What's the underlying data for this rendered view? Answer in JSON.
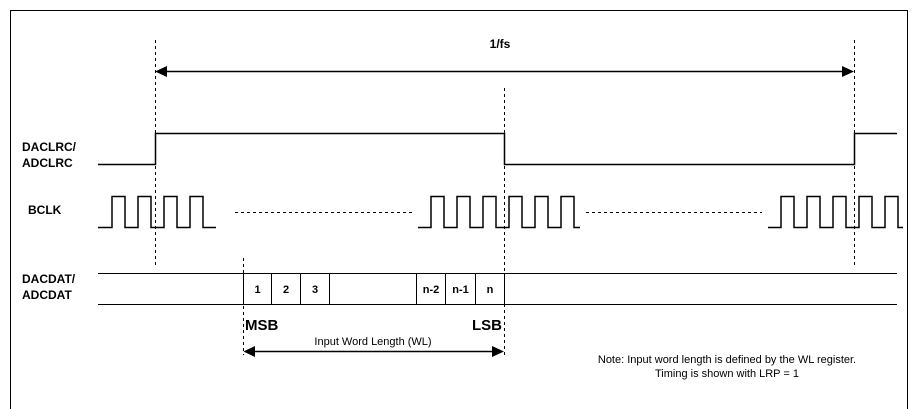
{
  "diagram": {
    "period_label": "1/fs",
    "signals": {
      "lrclk": [
        "DACLRC/",
        "ADCLRC"
      ],
      "bclk": "BCLK",
      "data": [
        "DACDAT/",
        "ADCDAT"
      ]
    },
    "data_bits": [
      "1",
      "2",
      "3",
      "",
      "n-2",
      "n-1",
      "n"
    ],
    "msb_label": "MSB",
    "lsb_label": "LSB",
    "word_length_label": "Input Word Length (WL)",
    "note": [
      "Note: Input word length is defined by the WL register.",
      "Timing is shown with LRP = 1"
    ]
  }
}
